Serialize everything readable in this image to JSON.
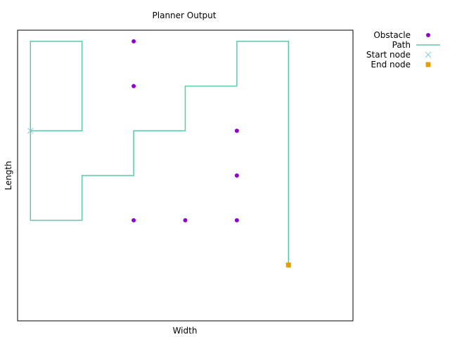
{
  "chart_data": {
    "type": "scatter",
    "title": "Planner Output",
    "xlabel": "Width",
    "ylabel": "Length",
    "xlim": [
      -0.25,
      6.25
    ],
    "ylim": [
      -0.25,
      6.25
    ],
    "grid": false,
    "legend_placement": "outside-top-right",
    "series": [
      {
        "name": "Obstacle",
        "kind": "points",
        "marker": "circle",
        "color": "#9400d3",
        "points": [
          [
            2,
            6
          ],
          [
            2,
            5
          ],
          [
            4,
            4
          ],
          [
            4,
            3
          ],
          [
            2,
            2
          ],
          [
            3,
            2
          ],
          [
            4,
            2
          ]
        ]
      },
      {
        "name": "Path",
        "kind": "line",
        "color": "#5fc8aa",
        "points": [
          [
            0,
            4
          ],
          [
            1,
            4
          ],
          [
            1,
            6
          ],
          [
            0,
            6
          ],
          [
            0,
            2
          ],
          [
            1,
            2
          ],
          [
            1,
            3
          ],
          [
            2,
            3
          ],
          [
            2,
            4
          ],
          [
            3,
            4
          ],
          [
            3,
            5
          ],
          [
            4,
            5
          ],
          [
            4,
            6
          ],
          [
            5,
            6
          ],
          [
            5,
            1
          ]
        ]
      },
      {
        "name": "Start node",
        "kind": "points",
        "marker": "x",
        "color": "#7fc8e0",
        "points": [
          [
            0,
            4
          ]
        ]
      },
      {
        "name": "End node",
        "kind": "points",
        "marker": "square",
        "color": "#e69f00",
        "points": [
          [
            5,
            1
          ]
        ]
      }
    ]
  }
}
